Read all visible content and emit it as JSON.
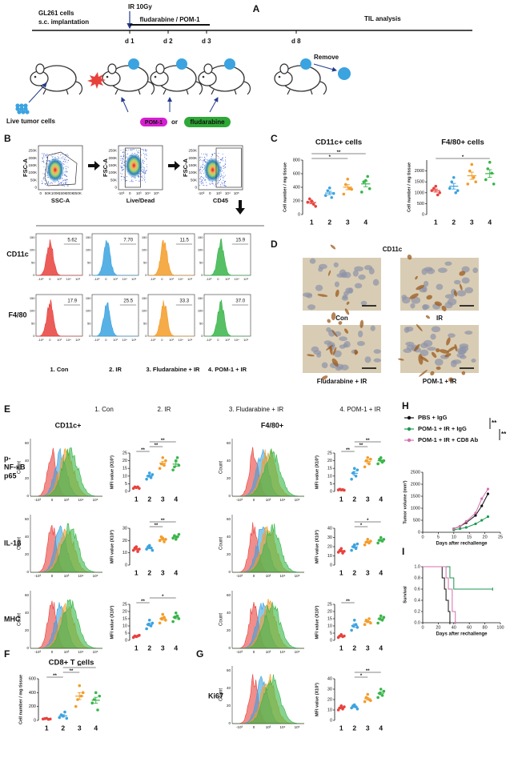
{
  "A": {
    "label": "A",
    "cells": "GL261 cells",
    "implant": "s.c. implantation",
    "ir": "IR 10Gy",
    "treat": "fludarabine / POM-1",
    "til": "TIL analysis",
    "days": [
      "d 1",
      "d 2",
      "d 3",
      "d 8"
    ],
    "remove": "Remove",
    "live": "Live tumor cells",
    "pom": "POM-1",
    "or": "or",
    "flu": "fludarabine"
  },
  "B": {
    "label": "B",
    "plots": [
      {
        "xlabel": "SSC-A",
        "ylabel": "FSC-A",
        "xticks": [
          "0",
          "50K",
          "100K",
          "150K",
          "200K",
          "250K"
        ],
        "yticks": [
          "0",
          "50K",
          "100K",
          "150K",
          "200K",
          "250K"
        ]
      },
      {
        "xlabel": "Live/Dead",
        "ylabel": "FSC-A",
        "xticks": [
          "-10³",
          "0",
          "10³",
          "10⁴",
          "10⁵"
        ],
        "yticks": [
          "0",
          "50K",
          "100K",
          "150K",
          "200K",
          "250K"
        ]
      },
      {
        "xlabel": "CD45",
        "ylabel": "FSC-A",
        "xticks": [
          "-10³",
          "0",
          "10³",
          "10⁴",
          "10⁵"
        ],
        "yticks": [
          "0",
          "50K",
          "100K",
          "150K",
          "200K",
          "250K"
        ]
      }
    ],
    "hist_rows": [
      "CD11c",
      "F4/80"
    ],
    "groups": [
      "1. Con",
      "2. IR",
      "3. Fludarabine + IR",
      "4. POM-1 + IR"
    ],
    "percent": [
      [
        "5.62",
        "7.70",
        "11.5",
        "15.9"
      ],
      [
        "17.9",
        "25.5",
        "33.3",
        "37.0"
      ]
    ],
    "hist_xticks": [
      "-10³",
      "0",
      "10³",
      "10⁴",
      "10⁵"
    ],
    "hist_yticks": [
      "0",
      "50",
      "100",
      "150"
    ]
  },
  "C": {
    "label": "C"
  },
  "D": {
    "label": "D",
    "marker": "CD11c",
    "images": [
      "Con",
      "IR",
      "Fludarabine + IR",
      "POM-1 + IR"
    ]
  },
  "E": {
    "label": "E",
    "legend": [
      "1. Con",
      "2. IR",
      "3. Fludarabine + IR",
      "4. POM-1 + IR"
    ],
    "colors": [
      "#e8413c",
      "#3ba3e0",
      "#f39c28",
      "#39b54a"
    ],
    "columns": [
      "CD11c+",
      "F4/80+"
    ],
    "rows": [
      [
        "p-",
        "NF-κB",
        "p65"
      ],
      [
        "IL-1β"
      ],
      [
        "MHC"
      ]
    ],
    "hist_ylabel": "Count",
    "hist_yticks": [
      "0",
      "20",
      "40",
      "60"
    ],
    "hist_xticks": [
      "-10³",
      "0",
      "10³",
      "10⁴",
      "10⁵"
    ]
  },
  "F": {
    "label": "F"
  },
  "G": {
    "label": "G",
    "marker": "Ki67"
  },
  "H": {
    "label": "H"
  },
  "I": {
    "label": "I"
  },
  "chart_data": [
    {
      "type": "dot",
      "title": "CD11c+ cells",
      "ylabel": "Cell number / mg tissue",
      "categories": [
        "1",
        "2",
        "3",
        "4"
      ],
      "colors": [
        "#e8413c",
        "#3ba3e0",
        "#f39c28",
        "#39b54a"
      ],
      "points": [
        [
          180,
          230,
          200,
          150,
          120
        ],
        [
          280,
          350,
          390,
          250,
          310
        ],
        [
          300,
          440,
          520,
          380,
          370
        ],
        [
          330,
          480,
          500,
          560,
          380
        ]
      ],
      "ylim": [
        0,
        800
      ],
      "yticks": [
        0,
        200,
        400,
        600,
        800
      ],
      "brackets": [
        {
          "from": 0,
          "to": 3,
          "label": "**"
        },
        {
          "from": 0,
          "to": 2,
          "label": "*"
        }
      ]
    },
    {
      "type": "dot",
      "title": "F4/80+ cells",
      "ylabel": "Cell number / mg tissue",
      "categories": [
        "1",
        "2",
        "3",
        "4"
      ],
      "colors": [
        "#e8413c",
        "#3ba3e0",
        "#f39c28",
        "#39b54a"
      ],
      "points": [
        [
          1100,
          1200,
          1300,
          900,
          1000
        ],
        [
          1200,
          1500,
          1700,
          1000,
          1100
        ],
        [
          1400,
          2000,
          2300,
          1700,
          1500
        ],
        [
          1600,
          2100,
          2400,
          1900,
          1400
        ]
      ],
      "ylim": [
        0,
        2500
      ],
      "yticks": [
        0,
        500,
        1000,
        1500,
        2000
      ],
      "brackets": [
        {
          "from": 0,
          "to": 3,
          "label": "*"
        }
      ]
    },
    {
      "type": "dot",
      "ylabel": "MFI value (X10³)",
      "categories": [
        "1",
        "2",
        "3",
        "4"
      ],
      "colors": [
        "#e8413c",
        "#3ba3e0",
        "#f39c28",
        "#39b54a"
      ],
      "points": [
        [
          2,
          3,
          2.5,
          3,
          2
        ],
        [
          8,
          10,
          12,
          9,
          11
        ],
        [
          15,
          18,
          22,
          17,
          20
        ],
        [
          14,
          16,
          20,
          22,
          17
        ]
      ],
      "ylim": [
        0,
        25
      ],
      "yticks": [
        0,
        5,
        10,
        15,
        20,
        25
      ],
      "brackets": [
        {
          "from": 1,
          "to": 3,
          "label": "**"
        },
        {
          "from": 1,
          "to": 2,
          "label": "**"
        },
        {
          "from": 0,
          "to": 1,
          "label": "**"
        }
      ]
    },
    {
      "type": "dot",
      "ylabel": "MFI value (X10³)",
      "categories": [
        "1",
        "2",
        "3",
        "4"
      ],
      "colors": [
        "#e8413c",
        "#3ba3e0",
        "#f39c28",
        "#39b54a"
      ],
      "points": [
        [
          1,
          1.5,
          1,
          1.2,
          0.8
        ],
        [
          8,
          12,
          15,
          10,
          14
        ],
        [
          16,
          20,
          22,
          18,
          21
        ],
        [
          18,
          21,
          22,
          19,
          20
        ]
      ],
      "ylim": [
        0,
        25
      ],
      "yticks": [
        0,
        5,
        10,
        15,
        20,
        25
      ],
      "brackets": [
        {
          "from": 1,
          "to": 3,
          "label": "**"
        },
        {
          "from": 1,
          "to": 2,
          "label": "**"
        },
        {
          "from": 0,
          "to": 1,
          "label": "**"
        }
      ]
    },
    {
      "type": "dot",
      "ylabel": "MFI value (X10³)",
      "categories": [
        "1",
        "2",
        "3",
        "4"
      ],
      "colors": [
        "#e8413c",
        "#3ba3e0",
        "#f39c28",
        "#39b54a"
      ],
      "points": [
        [
          12,
          14,
          15,
          11,
          13
        ],
        [
          13,
          15,
          16,
          14,
          12
        ],
        [
          20,
          23,
          22,
          19,
          21
        ],
        [
          22,
          24,
          21,
          23,
          25
        ]
      ],
      "ylim": [
        0,
        30
      ],
      "yticks": [
        0,
        10,
        20,
        30
      ],
      "brackets": [
        {
          "from": 1,
          "to": 3,
          "label": "**"
        },
        {
          "from": 1,
          "to": 2,
          "label": "**"
        }
      ]
    },
    {
      "type": "dot",
      "ylabel": "MFI value (X10³)",
      "categories": [
        "1",
        "2",
        "3",
        "4"
      ],
      "colors": [
        "#e8413c",
        "#3ba3e0",
        "#f39c28",
        "#39b54a"
      ],
      "points": [
        [
          14,
          16,
          18,
          13,
          15
        ],
        [
          16,
          20,
          22,
          18,
          23
        ],
        [
          22,
          25,
          28,
          24,
          26
        ],
        [
          24,
          27,
          30,
          26,
          28
        ]
      ],
      "ylim": [
        0,
        40
      ],
      "yticks": [
        0,
        10,
        20,
        30,
        40
      ],
      "brackets": [
        {
          "from": 1,
          "to": 3,
          "label": "*"
        },
        {
          "from": 1,
          "to": 2,
          "label": "*"
        }
      ]
    },
    {
      "type": "dot",
      "ylabel": "MFI value (X10³)",
      "categories": [
        "1",
        "2",
        "3",
        "4"
      ],
      "colors": [
        "#e8413c",
        "#3ba3e0",
        "#f39c28",
        "#39b54a"
      ],
      "points": [
        [
          2,
          3,
          2.5,
          3,
          3.5
        ],
        [
          8,
          11,
          14,
          10,
          12
        ],
        [
          12,
          15,
          18,
          16,
          14
        ],
        [
          13,
          16,
          19,
          17,
          15
        ]
      ],
      "ylim": [
        0,
        25
      ],
      "yticks": [
        0,
        5,
        10,
        15,
        20,
        25
      ],
      "brackets": [
        {
          "from": 1,
          "to": 3,
          "label": "*"
        },
        {
          "from": 0,
          "to": 1,
          "label": "**"
        }
      ]
    },
    {
      "type": "dot",
      "ylabel": "MFI value (X10³)",
      "categories": [
        "1",
        "2",
        "3",
        "4"
      ],
      "colors": [
        "#e8413c",
        "#3ba3e0",
        "#f39c28",
        "#39b54a"
      ],
      "points": [
        [
          2,
          3,
          4,
          2.5,
          3
        ],
        [
          7,
          10,
          14,
          11,
          9
        ],
        [
          11,
          14,
          13,
          15,
          12
        ],
        [
          12,
          15,
          17,
          14,
          16
        ]
      ],
      "ylim": [
        0,
        25
      ],
      "yticks": [
        0,
        5,
        10,
        15,
        20,
        25
      ],
      "brackets": [
        {
          "from": 0,
          "to": 1,
          "label": "**"
        }
      ]
    },
    {
      "type": "dot",
      "title": "CD8+ T cells",
      "ylabel": "Cell number / mg tissue",
      "categories": [
        "1",
        "2",
        "3",
        "4"
      ],
      "colors": [
        "#e8413c",
        "#3ba3e0",
        "#f39c28",
        "#39b54a"
      ],
      "points": [
        [
          20,
          25,
          30,
          15,
          20
        ],
        [
          40,
          80,
          60,
          120,
          30
        ],
        [
          200,
          300,
          500,
          350,
          400
        ],
        [
          250,
          300,
          400,
          150,
          350
        ]
      ],
      "ylim": [
        0,
        600
      ],
      "yticks": [
        0,
        200,
        400,
        600
      ],
      "brackets": [
        {
          "from": 1,
          "to": 3,
          "label": "**"
        },
        {
          "from": 1,
          "to": 2,
          "label": "**"
        },
        {
          "from": 0,
          "to": 1,
          "label": "**"
        }
      ]
    },
    {
      "type": "dot",
      "ylabel": "MFI value (X10³)",
      "categories": [
        "1",
        "2",
        "3",
        "4"
      ],
      "colors": [
        "#e8413c",
        "#3ba3e0",
        "#f39c28",
        "#39b54a"
      ],
      "points": [
        [
          10,
          12,
          14,
          11,
          13
        ],
        [
          12,
          14,
          15,
          13,
          11
        ],
        [
          18,
          22,
          25,
          20,
          19
        ],
        [
          22,
          26,
          30,
          24,
          28
        ]
      ],
      "ylim": [
        0,
        40
      ],
      "yticks": [
        0,
        10,
        20,
        30,
        40
      ],
      "brackets": [
        {
          "from": 1,
          "to": 3,
          "label": "**"
        },
        {
          "from": 1,
          "to": 2,
          "label": "*"
        }
      ]
    },
    {
      "type": "line",
      "ylabel": "Tumor volume (mm³)",
      "xlabel": "Days after rechallenge",
      "x": [
        10,
        12,
        14,
        17,
        19,
        21
      ],
      "series": [
        {
          "name": "PBS + IgG",
          "color": "#111111",
          "values": [
            150,
            250,
            400,
            700,
            1100,
            1600
          ]
        },
        {
          "name": "POM-1 + IR + IgG",
          "color": "#1a9850",
          "values": [
            100,
            150,
            200,
            350,
            500,
            650
          ]
        },
        {
          "name": "POM-1 + IR + CD8 Ab",
          "color": "#d66fb0",
          "values": [
            150,
            250,
            450,
            800,
            1400,
            1800
          ]
        }
      ],
      "xlim": [
        0,
        25
      ],
      "xticks": [
        0,
        5,
        10,
        15,
        20,
        25
      ],
      "ylim": [
        0,
        2500
      ],
      "yticks": [
        0,
        500,
        1000,
        1500,
        2000,
        2500
      ],
      "significance": [
        {
          "from": 0,
          "to": 1,
          "label": "**"
        },
        {
          "from": 1,
          "to": 2,
          "label": "**"
        }
      ]
    },
    {
      "type": "step",
      "ylabel": "Survival",
      "xlabel": "Days after rechallenge",
      "series": [
        {
          "color": "#111111",
          "x": [
            0,
            25,
            28,
            30,
            33,
            35
          ],
          "values": [
            1,
            0.8,
            0.6,
            0.4,
            0.2,
            0
          ]
        },
        {
          "color": "#1a9850",
          "x": [
            0,
            35,
            40,
            90
          ],
          "values": [
            1,
            0.8,
            0.6,
            0.6
          ]
        },
        {
          "color": "#d66fb0",
          "x": [
            0,
            30,
            33,
            38,
            42
          ],
          "values": [
            1,
            0.8,
            0.6,
            0.2,
            0
          ]
        }
      ],
      "xlim": [
        0,
        100
      ],
      "xticks": [
        0,
        20,
        40,
        60,
        80,
        100
      ],
      "ylim": [
        0,
        1
      ],
      "yticks": [
        {
          "value": 0,
          "label": "0.0"
        },
        {
          "value": 0.2,
          "label": "0.2"
        },
        {
          "value": 0.4,
          "label": "0.4"
        },
        {
          "value": 0.6,
          "label": "0.6"
        },
        {
          "value": 0.8,
          "label": "0.8"
        },
        {
          "value": 1,
          "label": "1.0"
        }
      ]
    }
  ]
}
